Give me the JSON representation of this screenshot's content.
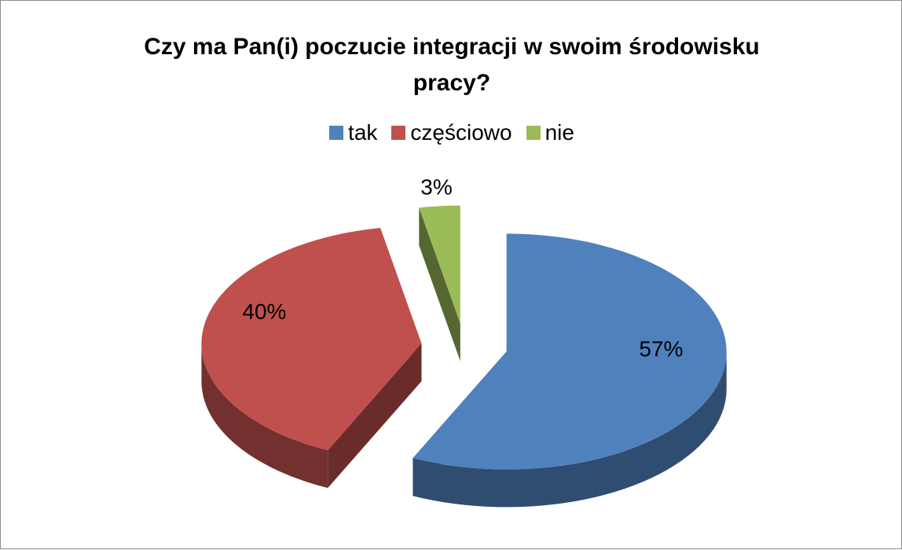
{
  "chart_data": {
    "type": "pie3d",
    "title": "Czy ma Pan(i) poczucie integracji w swoim środowisku pracy?",
    "categories": [
      "tak",
      "częściowo",
      "nie"
    ],
    "values": [
      57,
      40,
      3
    ],
    "value_labels": [
      "57%",
      "40%",
      "3%"
    ],
    "colors": [
      "#4f81bd",
      "#c0504d",
      "#9bbb59"
    ],
    "legend": "top"
  }
}
